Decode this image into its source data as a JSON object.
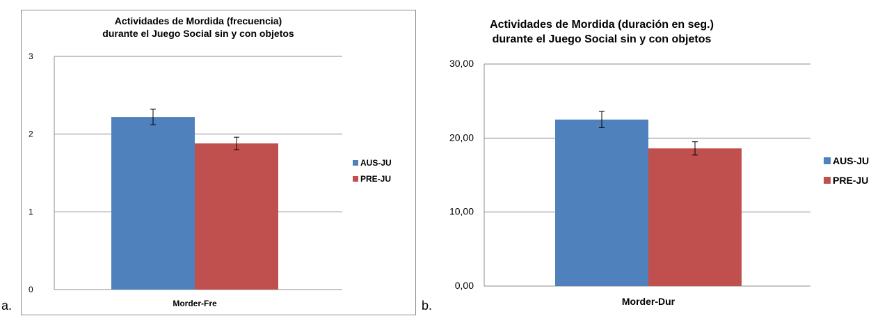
{
  "panel_labels": {
    "a": "a.",
    "b": "b."
  },
  "chart_data": [
    {
      "type": "bar",
      "title_line1": "Actividades de Mordida (frecuencia)",
      "title_line2": "durante el Juego Social sin y con objetos",
      "categories": [
        "Morder-Fre"
      ],
      "series": [
        {
          "name": "AUS-JU",
          "values": [
            2.22
          ],
          "error": [
            0.1
          ],
          "color": "#4f81bd"
        },
        {
          "name": "PRE-JU",
          "values": [
            1.88
          ],
          "error": [
            0.08
          ],
          "color": "#c0504d"
        }
      ],
      "ylim": [
        0,
        3
      ],
      "yticks": [
        0,
        1,
        2,
        3
      ],
      "ytick_labels": [
        "0",
        "1",
        "2",
        "3"
      ],
      "grid": true,
      "legend": "right"
    },
    {
      "type": "bar",
      "title_line1": "Actividades de Mordida (duración en seg.)",
      "title_line2": "durante el Juego Social sin y con objetos",
      "categories": [
        "Morder-Dur"
      ],
      "series": [
        {
          "name": "AUS-JU",
          "values": [
            22.5
          ],
          "error": [
            1.1
          ],
          "color": "#4f81bd"
        },
        {
          "name": "PRE-JU",
          "values": [
            18.6
          ],
          "error": [
            0.9
          ],
          "color": "#c0504d"
        }
      ],
      "ylim": [
        0,
        30
      ],
      "yticks": [
        0,
        10,
        20,
        30
      ],
      "ytick_labels": [
        "0,00",
        "10,00",
        "20,00",
        "30,00"
      ],
      "grid": true,
      "legend": "right"
    }
  ]
}
